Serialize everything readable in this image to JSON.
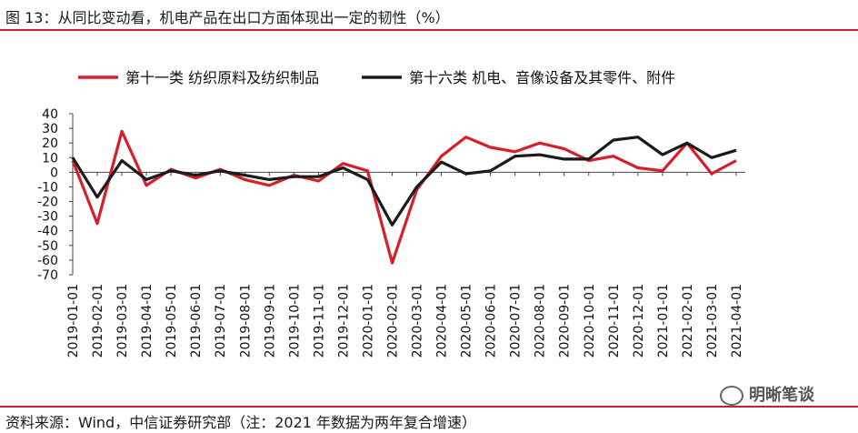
{
  "title": "图 13：从同比变动看，机电产品在出口方面体现出一定的韧性（%）",
  "source": "资料来源：Wind，中信证券研究部（注：2021 年数据为两年复合增速）",
  "watermark": "明晰笔谈",
  "colors": {
    "accent": "#c8202f",
    "series1": "#d81e2a",
    "series2": "#1a1a1a"
  },
  "chart_data": {
    "type": "line",
    "ylim": [
      -70,
      40
    ],
    "yticks": [
      40,
      30,
      20,
      10,
      0,
      -10,
      -20,
      -30,
      -40,
      -50,
      -60,
      -70
    ],
    "legend_position": "top",
    "grid": false,
    "categories": [
      "2019-01-01",
      "2019-02-01",
      "2019-03-01",
      "2019-04-01",
      "2019-05-01",
      "2019-06-01",
      "2019-07-01",
      "2019-08-01",
      "2019-09-01",
      "2019-10-01",
      "2019-11-01",
      "2019-12-01",
      "2020-01-01",
      "2020-02-01",
      "2020-03-01",
      "2020-04-01",
      "2020-05-01",
      "2020-06-01",
      "2020-07-01",
      "2020-08-01",
      "2020-09-01",
      "2020-10-01",
      "2020-11-01",
      "2020-12-01",
      "2021-01-01",
      "2021-02-01",
      "2021-03-01",
      "2021-04-01"
    ],
    "series": [
      {
        "name": "第十一类 纺织原料及纺织制品",
        "values": [
          8,
          -35,
          28,
          -9,
          2,
          -4,
          2,
          -5,
          -9,
          -2,
          -6,
          6,
          1,
          -62,
          -12,
          11,
          24,
          17,
          14,
          20,
          16,
          8,
          11,
          3,
          1,
          20,
          -1,
          8
        ]
      },
      {
        "name": "第十六类 机电、音像设备及其零件、附件",
        "values": [
          10,
          -17,
          8,
          -5,
          1,
          -2,
          1,
          -2,
          -5,
          -3,
          -3,
          3,
          -5,
          -36,
          -10,
          7,
          -1,
          1,
          11,
          12,
          9,
          9,
          22,
          24,
          12,
          20,
          10,
          15
        ]
      }
    ]
  }
}
